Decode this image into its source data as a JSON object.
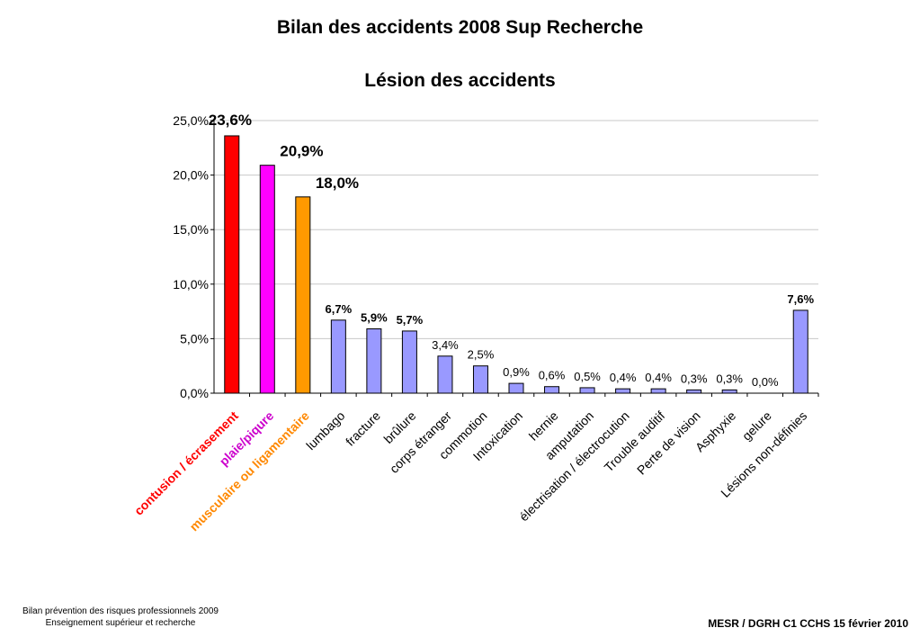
{
  "header": {
    "title": "Bilan des accidents 2008 Sup Recherche",
    "subtitle": "Lésion des accidents"
  },
  "chart_data": {
    "type": "bar",
    "ylim": [
      0,
      25
    ],
    "yticks": [
      "0,0%",
      "5,0%",
      "10,0%",
      "15,0%",
      "20,0%",
      "25,0%"
    ],
    "grid": true,
    "categories": [
      "contusion / écrasement",
      "plaie/piqure",
      "musculaire ou ligamentaire",
      "lumbago",
      "fracture",
      "brûlure",
      "corps étranger",
      "commotion",
      "Intoxication",
      "hernie",
      "amputation",
      "électrisation / électrocution",
      "Trouble auditif",
      "Perte de vision",
      "Asphyxie",
      "gelure",
      "Lésions non-définies"
    ],
    "values": [
      23.6,
      20.9,
      18.0,
      6.7,
      5.9,
      5.7,
      3.4,
      2.5,
      0.9,
      0.6,
      0.5,
      0.4,
      0.4,
      0.3,
      0.3,
      0.0,
      7.6
    ],
    "labels": [
      "23,6%",
      "20,9%",
      "18,0%",
      "6,7%",
      "5,9%",
      "5,7%",
      "3,4%",
      "2,5%",
      "0,9%",
      "0,6%",
      "0,5%",
      "0,4%",
      "0,4%",
      "0,3%",
      "0,3%",
      "0,0%",
      "7,6%"
    ],
    "bar_colors": [
      "#ff0000",
      "#ff00ff",
      "#ff9900",
      "#9999ff",
      "#9999ff",
      "#9999ff",
      "#9999ff",
      "#9999ff",
      "#9999ff",
      "#9999ff",
      "#9999ff",
      "#9999ff",
      "#9999ff",
      "#9999ff",
      "#9999ff",
      "#9999ff",
      "#9999ff"
    ],
    "category_label_colors": [
      "#ff0000",
      "#cc00cc",
      "#ff8800",
      "#000000",
      "#000000",
      "#000000",
      "#000000",
      "#000000",
      "#000000",
      "#000000",
      "#000000",
      "#000000",
      "#000000",
      "#000000",
      "#000000",
      "#000000",
      "#000000"
    ],
    "emphasized_label_indices": [
      0,
      1,
      2,
      3,
      4,
      5,
      16
    ]
  },
  "footer": {
    "left_line1": "Bilan prévention des risques professionnels 2009",
    "left_line2": "Enseignement supérieur et recherche",
    "right": "MESR / DGRH C1 CCHS 15 février 2010"
  }
}
